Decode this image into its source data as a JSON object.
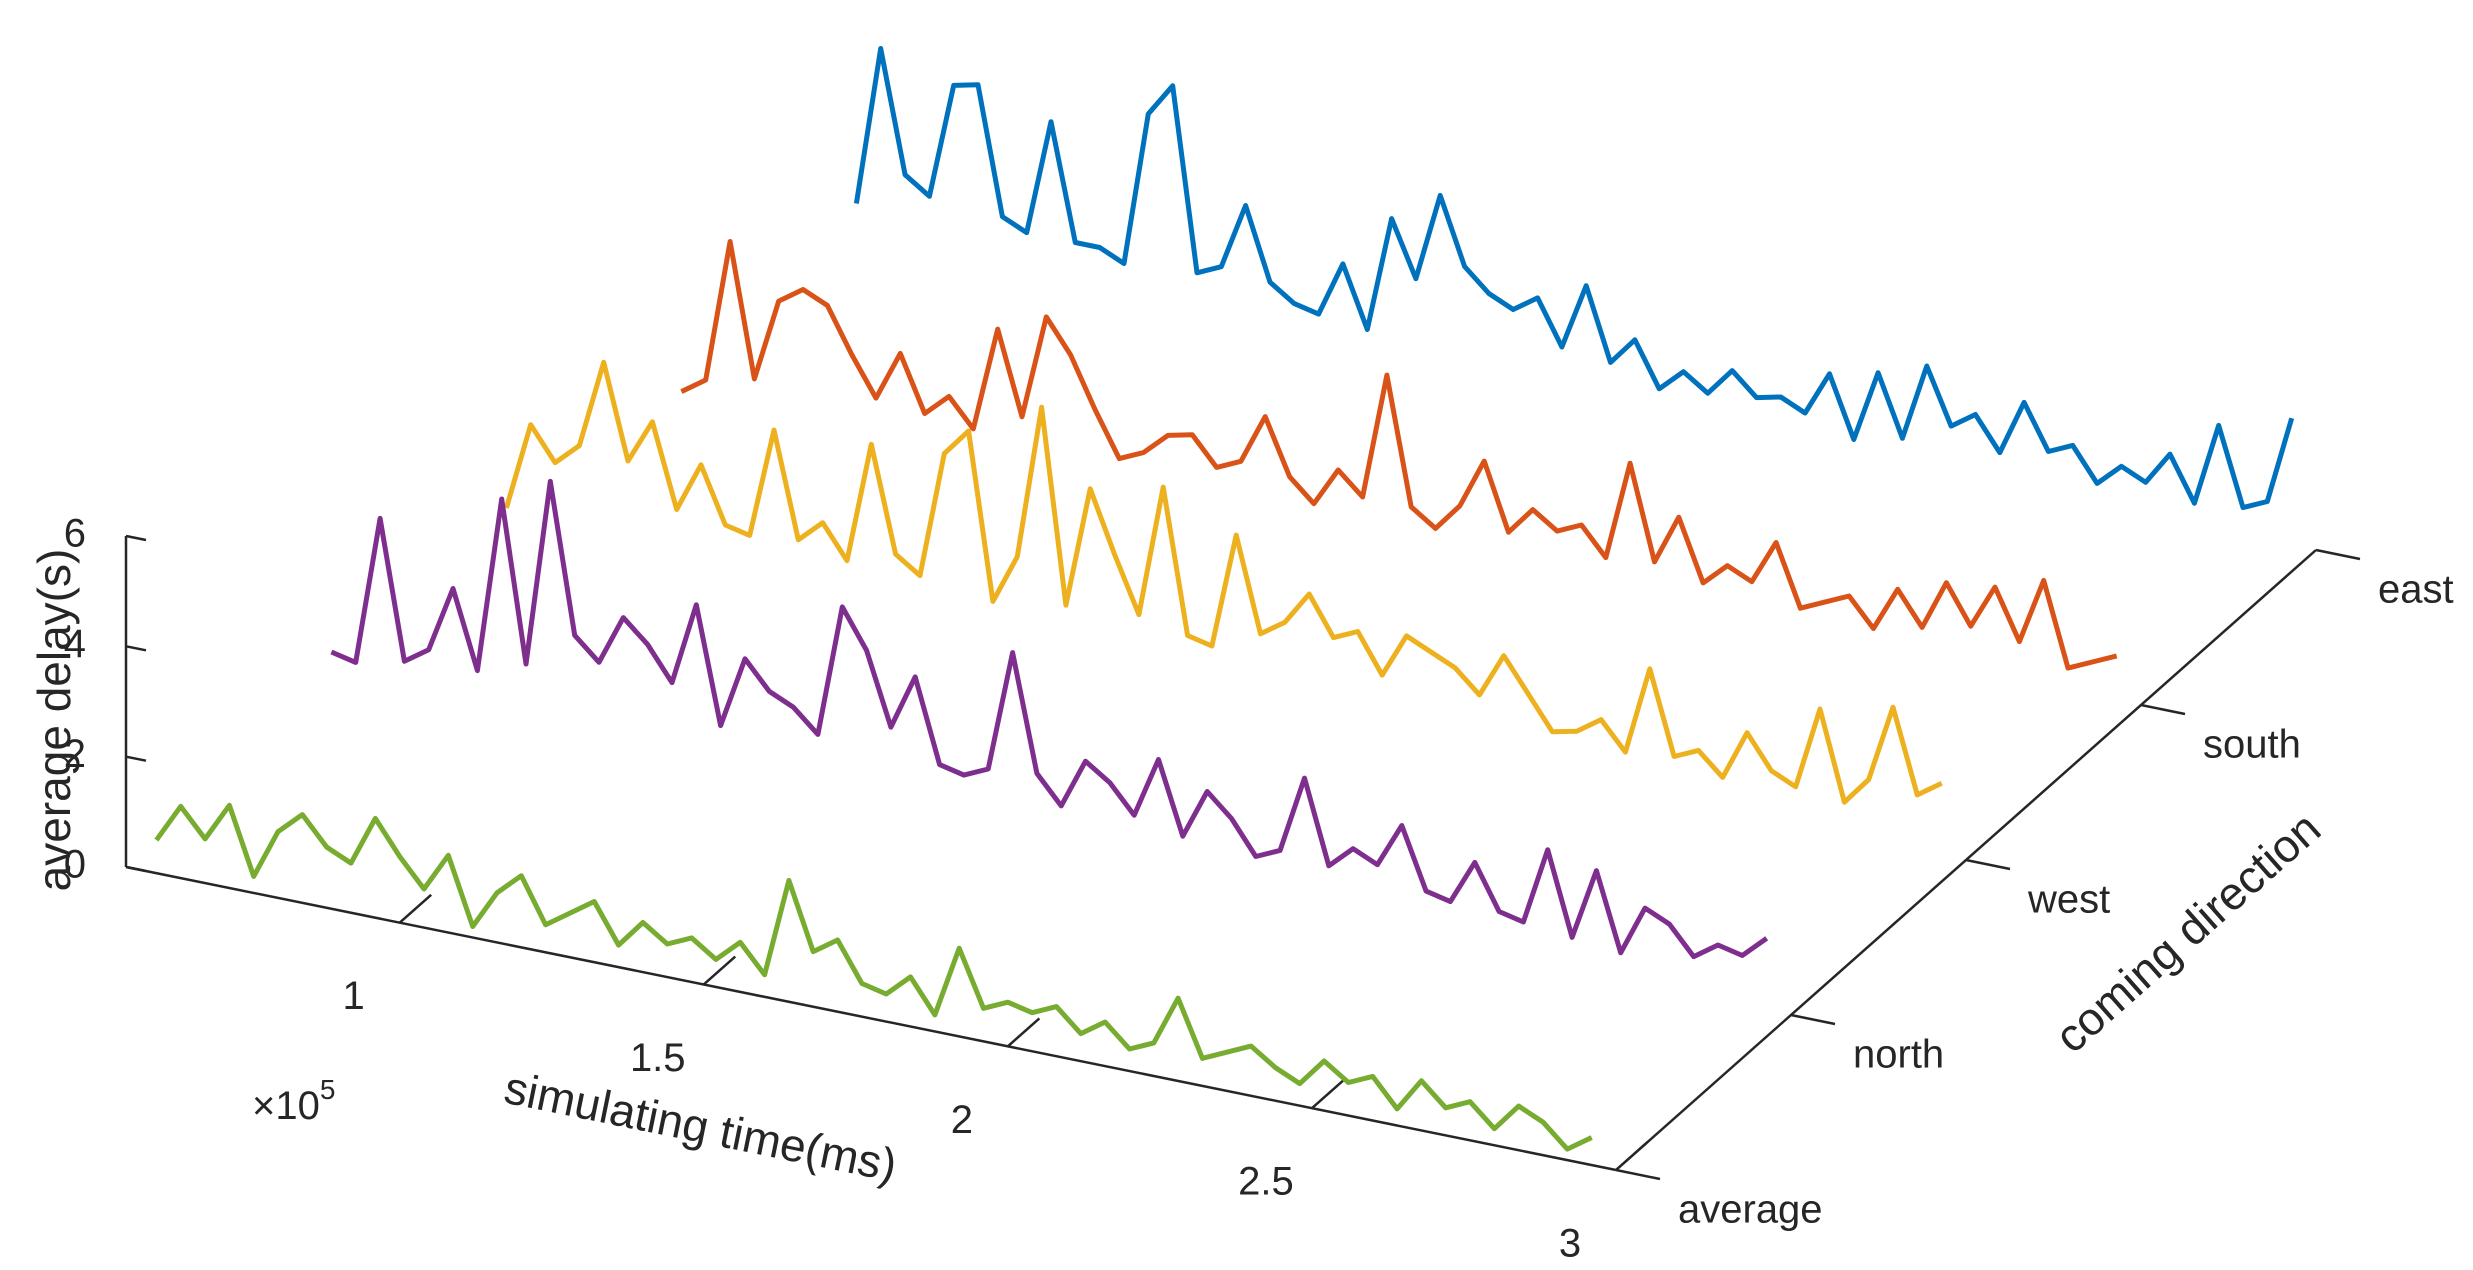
{
  "chart_data": {
    "type": "waterfall",
    "xlabel": "simulating time(ms)",
    "ylabel": "average delay(s)",
    "zlabel": "coming direction",
    "x_multiplier": "×10",
    "x_multiplier_exponent": "5",
    "xlim": [
      55000,
      300000
    ],
    "xticks": [
      {
        "value": 100000,
        "label": "1"
      },
      {
        "value": 150000,
        "label": "1.5"
      },
      {
        "value": 200000,
        "label": "2"
      },
      {
        "value": 250000,
        "label": "2.5"
      },
      {
        "value": 300000,
        "label": "3"
      }
    ],
    "ylim": [
      0,
      6
    ],
    "yticks": [
      0,
      2,
      4,
      6
    ],
    "z_categories": [
      "average",
      "north",
      "west",
      "south",
      "east"
    ],
    "x": [
      60000,
      64000,
      68000,
      72000,
      76000,
      80000,
      84000,
      88000,
      92000,
      96000,
      100000,
      104000,
      108000,
      112000,
      116000,
      120000,
      124000,
      128000,
      132000,
      136000,
      140000,
      144000,
      148000,
      152000,
      156000,
      160000,
      164000,
      168000,
      172000,
      176000,
      180000,
      184000,
      188000,
      192000,
      196000,
      200000,
      204000,
      208000,
      212000,
      216000,
      220000,
      224000,
      228000,
      232000,
      236000,
      240000,
      244000,
      248000,
      252000,
      256000,
      260000,
      264000,
      268000,
      272000,
      276000,
      280000,
      284000,
      288000,
      292000,
      296000
    ],
    "series": [
      {
        "name": "average",
        "color": "#77ac30",
        "values": [
          0.6,
          1.3,
          0.8,
          1.5,
          0.3,
          1.2,
          1.6,
          1.1,
          0.9,
          1.8,
          1.2,
          0.7,
          1.4,
          0.2,
          0.9,
          1.3,
          0.5,
          0.8,
          1.1,
          0.4,
          0.9,
          0.6,
          0.8,
          0.5,
          0.9,
          0.4,
          2.2,
          1.0,
          1.3,
          0.6,
          0.5,
          0.9,
          0.3,
          1.6,
          0.6,
          0.8,
          0.7,
          0.9,
          0.5,
          0.8,
          0.4,
          0.6,
          1.5,
          0.5,
          0.7,
          0.9,
          0.6,
          0.4,
          0.9,
          0.6,
          0.8,
          0.3,
          0.9,
          0.5,
          0.7,
          0.3,
          0.8,
          0.6,
          0.2,
          0.5
        ]
      },
      {
        "name": "north",
        "color": "#7e2f8e",
        "values": [
          1.2,
          1.1,
          3.8,
          1.3,
          1.6,
          2.8,
          1.4,
          4.6,
          1.7,
          5.1,
          2.4,
          2.0,
          2.9,
          2.5,
          1.9,
          3.4,
          1.3,
          2.6,
          2.1,
          1.9,
          1.5,
          3.9,
          3.2,
          1.9,
          2.9,
          1.4,
          1.3,
          1.5,
          3.7,
          1.6,
          1.1,
          2.0,
          1.7,
          1.2,
          2.3,
          1.0,
          1.9,
          1.5,
          0.9,
          1.1,
          2.5,
          1.0,
          1.4,
          1.2,
          2.0,
          0.9,
          0.8,
          1.6,
          0.8,
          0.7,
          2.1,
          0.6,
          1.9,
          0.5,
          1.4,
          1.2,
          0.7,
          1.0,
          0.9,
          1.3
        ]
      },
      {
        "name": "west",
        "color": "#edb120",
        "values": [
          1.0,
          2.6,
          2.0,
          2.4,
          4.0,
          2.3,
          3.1,
          1.6,
          2.5,
          1.5,
          1.4,
          3.4,
          1.5,
          1.9,
          1.3,
          3.5,
          1.6,
          1.3,
          3.6,
          4.1,
          1.1,
          2.0,
          4.8,
          1.3,
          3.5,
          2.4,
          1.4,
          3.8,
          1.2,
          1.1,
          3.2,
          1.5,
          1.8,
          2.4,
          1.7,
          1.9,
          1.2,
          2.0,
          1.8,
          1.6,
          1.2,
          2.0,
          1.4,
          0.8,
          0.9,
          1.2,
          0.7,
          2.3,
          0.8,
          1.0,
          0.6,
          1.5,
          0.9,
          0.7,
          2.2,
          0.6,
          1.1,
          2.5,
          1.0,
          1.3
        ]
      },
      {
        "name": "south",
        "color": "#d95319",
        "values": [
          0.3,
          0.6,
          3.2,
          0.8,
          2.3,
          2.6,
          2.4,
          1.6,
          0.9,
          1.8,
          0.8,
          1.2,
          0.7,
          2.6,
          1.1,
          3.0,
          2.4,
          1.5,
          0.7,
          0.9,
          1.3,
          1.4,
          0.9,
          1.1,
          2.0,
          1.0,
          0.6,
          1.3,
          0.9,
          3.2,
          0.9,
          0.6,
          1.1,
          2.0,
          0.8,
          1.3,
          1.0,
          1.2,
          0.7,
          2.5,
          0.8,
          1.7,
          0.6,
          1.0,
          0.8,
          1.6,
          0.5,
          0.7,
          0.9,
          0.4,
          1.2,
          0.6,
          1.5,
          0.8,
          1.6,
          0.7,
          1.9,
          0.4,
          0.6,
          0.8
        ]
      },
      {
        "name": "east",
        "color": "#0072bd",
        "values": [
          0.9,
          3.8,
          1.6,
          1.3,
          3.4,
          3.5,
          1.2,
          1.0,
          3.1,
          1.0,
          1.0,
          0.8,
          3.6,
          4.2,
          0.9,
          1.1,
          2.3,
          1.0,
          0.7,
          0.6,
          1.6,
          0.5,
          2.6,
          1.6,
          3.2,
          2.0,
          1.6,
          1.4,
          1.7,
          0.9,
          2.1,
          0.8,
          1.3,
          0.5,
          0.9,
          0.6,
          1.1,
          0.7,
          0.8,
          0.6,
          1.4,
          0.3,
          1.6,
          0.5,
          1.9,
          0.9,
          1.2,
          0.6,
          1.6,
          0.8,
          1.0,
          0.4,
          0.8,
          0.6,
          1.2,
          0.4,
          1.9,
          0.5,
          0.7,
          2.3
        ]
      }
    ]
  }
}
